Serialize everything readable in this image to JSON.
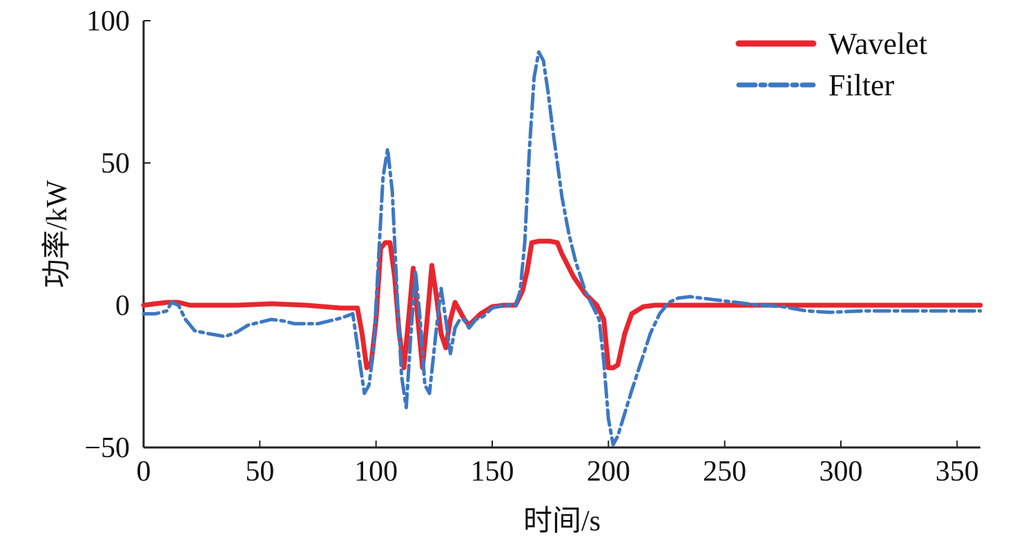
{
  "chart_data": {
    "type": "line",
    "xlabel": "时间/s",
    "ylabel": "功率/kW",
    "xlim": [
      0,
      360
    ],
    "ylim": [
      -50,
      100
    ],
    "xticks": [
      0,
      50,
      100,
      150,
      200,
      250,
      300,
      350
    ],
    "yticks": [
      -50,
      0,
      50,
      100
    ],
    "xtick_labels": [
      "0",
      "50",
      "100",
      "150",
      "200",
      "250",
      "300",
      "350"
    ],
    "ytick_labels": [
      "−50",
      "0",
      "50",
      "100"
    ],
    "grid": false,
    "legend_position": "top-right",
    "series": [
      {
        "name": "Wavelet",
        "color": "#e8262e",
        "style": "solid",
        "x": [
          0,
          5,
          10,
          15,
          20,
          40,
          55,
          70,
          85,
          92,
          94,
          96,
          98,
          100,
          102,
          104,
          106,
          108,
          110,
          112,
          114,
          116,
          118,
          120,
          122,
          124,
          126,
          128,
          130,
          132,
          134,
          136,
          138,
          140,
          145,
          150,
          155,
          160,
          163,
          165,
          167,
          170,
          175,
          178,
          180,
          185,
          190,
          195,
          198,
          200,
          202,
          204,
          207,
          210,
          215,
          220,
          240,
          260,
          280,
          300,
          320,
          340,
          360
        ],
        "y": [
          0,
          0.5,
          1,
          1,
          0,
          0,
          0.5,
          0,
          -1,
          -1,
          -10,
          -22,
          -20,
          -5,
          20,
          22,
          22,
          10,
          -10,
          -22,
          -5,
          13,
          -5,
          -22,
          -5,
          14,
          3,
          -10,
          -15,
          -5,
          1,
          -2,
          -5,
          -7,
          -3,
          -0.5,
          0,
          0,
          5,
          12,
          22,
          22.5,
          22.5,
          22,
          18,
          10,
          4,
          0,
          -5,
          -22,
          -22,
          -21,
          -10,
          -3,
          -0.5,
          0,
          0,
          0,
          0,
          0,
          0,
          0,
          0
        ]
      },
      {
        "name": "Filter",
        "color": "#3c78c3",
        "style": "dash-dot",
        "x": [
          0,
          5,
          10,
          12,
          15,
          18,
          22,
          28,
          35,
          40,
          45,
          50,
          55,
          60,
          65,
          70,
          75,
          80,
          85,
          90,
          93,
          95,
          97,
          99,
          101,
          103,
          105,
          107,
          109,
          111,
          113,
          115,
          117,
          119,
          121,
          123,
          126,
          128,
          130,
          132,
          134,
          136,
          138,
          140,
          143,
          146,
          150,
          155,
          160,
          162,
          164,
          166,
          168,
          170,
          172,
          174,
          176,
          178,
          180,
          183,
          186,
          190,
          193,
          196,
          198,
          200,
          202,
          204,
          207,
          210,
          214,
          218,
          222,
          226,
          230,
          235,
          245,
          255,
          265,
          275,
          285,
          295,
          310,
          330,
          360
        ],
        "y": [
          -3,
          -3,
          -2,
          1,
          0,
          -5,
          -9,
          -10,
          -11,
          -9.5,
          -7,
          -6,
          -5,
          -5.5,
          -6.5,
          -6.5,
          -6.5,
          -5.5,
          -4.5,
          -3,
          -20,
          -31,
          -28,
          -15,
          15,
          45,
          55,
          40,
          5,
          -25,
          -36,
          -10,
          12,
          -5,
          -28,
          -31,
          -8,
          6,
          -5,
          -17,
          -8,
          -5,
          -5,
          -8,
          -5,
          -4,
          -1,
          0,
          0,
          5,
          22,
          55,
          80,
          89,
          86,
          75,
          62,
          50,
          38,
          25,
          15,
          5,
          0,
          -5,
          -20,
          -40,
          -49,
          -46,
          -38,
          -30,
          -20,
          -10,
          -3,
          1,
          2.5,
          3,
          2,
          1,
          0,
          -0.5,
          -2,
          -2.5,
          -2,
          -2,
          -2
        ]
      }
    ]
  }
}
